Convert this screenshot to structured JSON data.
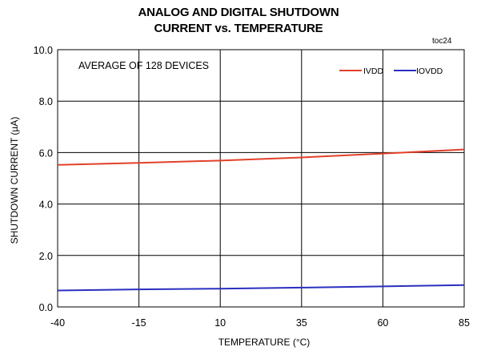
{
  "chart_data": {
    "type": "line",
    "title_line1": "ANALOG AND DIGITAL SHUTDOWN",
    "title_line2": "CURRENT vs. TEMPERATURE",
    "figure_id": "toc24",
    "annotation": "AVERAGE OF 128 DEVICES",
    "xlabel": "TEMPERATURE (°C)",
    "ylabel": "SHUTDOWN CURRENT (µA)",
    "xlim": [
      -40,
      85
    ],
    "ylim": [
      0,
      10
    ],
    "x_ticks": [
      "-40",
      "-15",
      "10",
      "35",
      "60",
      "85"
    ],
    "y_ticks": [
      "0.0",
      "2.0",
      "4.0",
      "6.0",
      "8.0",
      "10.0"
    ],
    "grid": true,
    "legend_position": "top-right",
    "series": [
      {
        "name": "IVDD",
        "color": "#e2402a",
        "x": [
          -40,
          -15,
          10,
          35,
          60,
          85
        ],
        "y": [
          5.52,
          5.6,
          5.69,
          5.81,
          5.96,
          6.12
        ]
      },
      {
        "name": "IOVDD",
        "color": "#2b2fc0",
        "x": [
          -40,
          -15,
          10,
          35,
          60,
          85
        ],
        "y": [
          0.64,
          0.68,
          0.71,
          0.75,
          0.8,
          0.85
        ]
      }
    ]
  }
}
